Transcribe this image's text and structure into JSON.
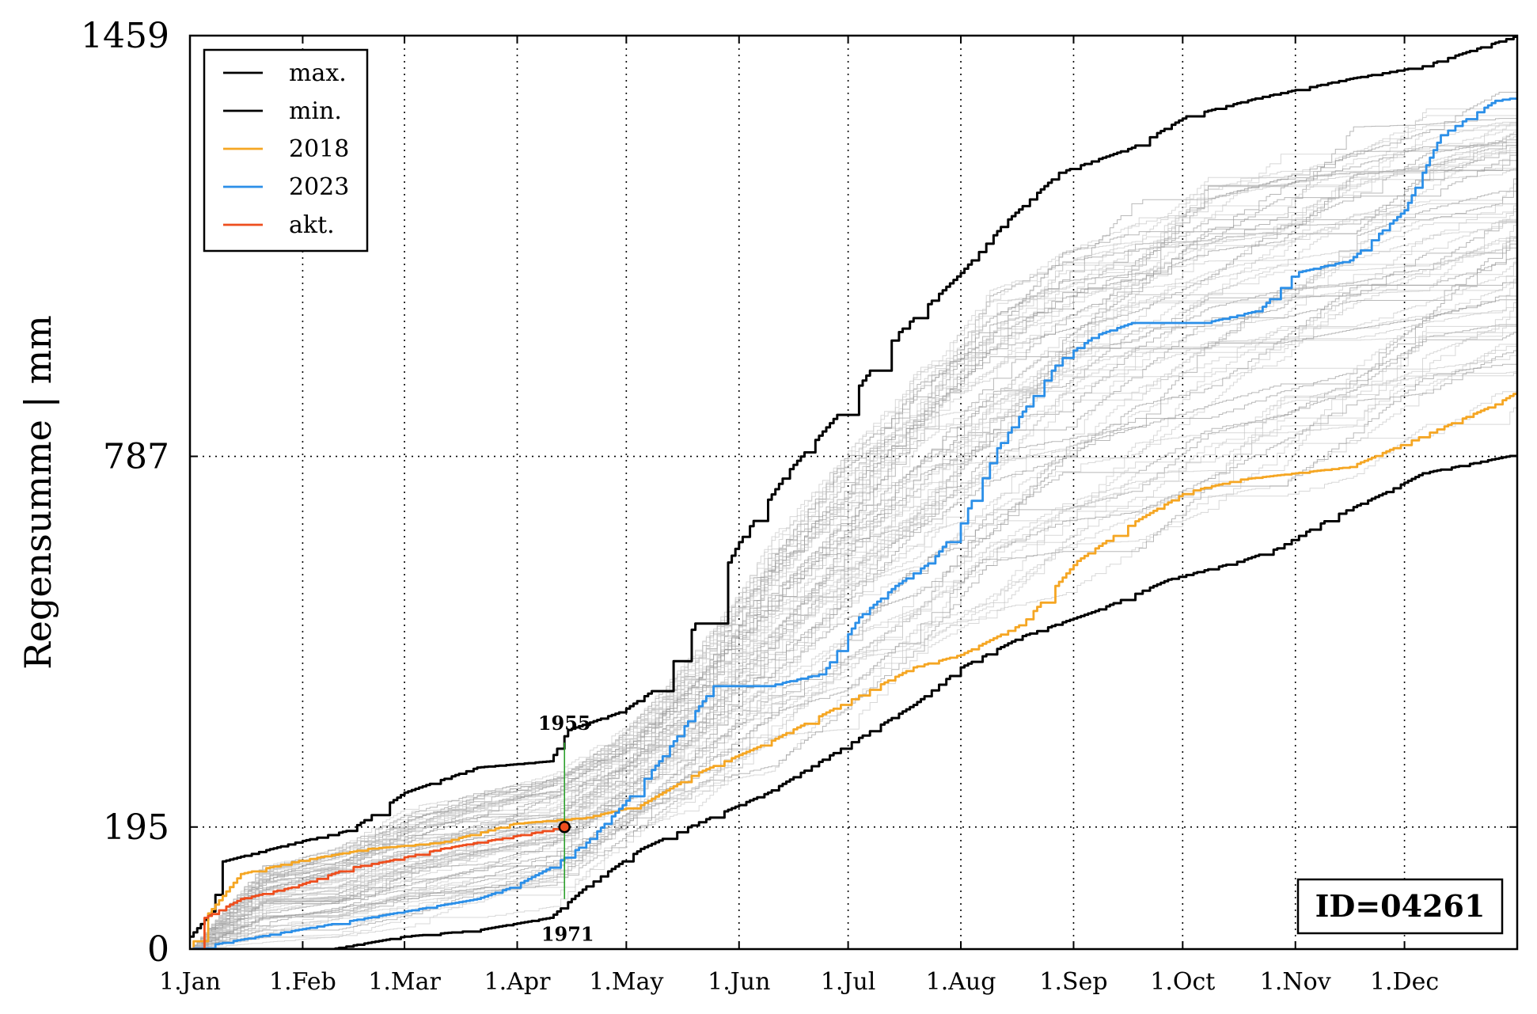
{
  "chart_data": {
    "type": "line",
    "ylabel": "Regensumme | mm",
    "ylim": [
      0,
      1459
    ],
    "yticks": [
      0,
      195,
      787,
      1459
    ],
    "xlim_days": [
      1,
      366
    ],
    "xticks": [
      {
        "day": 1,
        "label": "1.Jan"
      },
      {
        "day": 32,
        "label": "1.Feb"
      },
      {
        "day": 60,
        "label": "1.Mar"
      },
      {
        "day": 91,
        "label": "1.Apr"
      },
      {
        "day": 121,
        "label": "1.May"
      },
      {
        "day": 152,
        "label": "1.Jun"
      },
      {
        "day": 182,
        "label": "1.Jul"
      },
      {
        "day": 213,
        "label": "1.Aug"
      },
      {
        "day": 244,
        "label": "1.Sep"
      },
      {
        "day": 274,
        "label": "1.Oct"
      },
      {
        "day": 305,
        "label": "1.Nov"
      },
      {
        "day": 335,
        "label": "1.Dec"
      }
    ],
    "grid": true,
    "legend_position": "top-left",
    "id_label": "ID=04261",
    "series": [
      {
        "name": "max.",
        "color": "#000000",
        "points": [
          [
            1,
            20
          ],
          [
            7,
            60
          ],
          [
            10,
            140
          ],
          [
            30,
            170
          ],
          [
            45,
            190
          ],
          [
            60,
            250
          ],
          [
            80,
            290
          ],
          [
            100,
            300
          ],
          [
            105,
            350
          ],
          [
            120,
            380
          ],
          [
            130,
            420
          ],
          [
            140,
            520
          ],
          [
            152,
            650
          ],
          [
            165,
            760
          ],
          [
            180,
            860
          ],
          [
            195,
            980
          ],
          [
            213,
            1080
          ],
          [
            225,
            1160
          ],
          [
            240,
            1240
          ],
          [
            260,
            1280
          ],
          [
            275,
            1330
          ],
          [
            295,
            1360
          ],
          [
            320,
            1390
          ],
          [
            340,
            1410
          ],
          [
            366,
            1459
          ]
        ]
      },
      {
        "name": "min.",
        "color": "#000000",
        "points": [
          [
            1,
            0
          ],
          [
            40,
            0
          ],
          [
            60,
            20
          ],
          [
            80,
            30
          ],
          [
            100,
            50
          ],
          [
            110,
            100
          ],
          [
            125,
            160
          ],
          [
            140,
            200
          ],
          [
            160,
            250
          ],
          [
            180,
            320
          ],
          [
            200,
            390
          ],
          [
            213,
            450
          ],
          [
            230,
            500
          ],
          [
            250,
            540
          ],
          [
            270,
            590
          ],
          [
            290,
            620
          ],
          [
            300,
            640
          ],
          [
            315,
            690
          ],
          [
            330,
            730
          ],
          [
            340,
            760
          ],
          [
            366,
            790
          ]
        ]
      },
      {
        "name": "2018",
        "color": "#f5a623",
        "points": [
          [
            1,
            0
          ],
          [
            5,
            50
          ],
          [
            15,
            120
          ],
          [
            30,
            140
          ],
          [
            50,
            160
          ],
          [
            70,
            170
          ],
          [
            90,
            200
          ],
          [
            100,
            205
          ],
          [
            110,
            210
          ],
          [
            125,
            230
          ],
          [
            140,
            280
          ],
          [
            160,
            330
          ],
          [
            180,
            390
          ],
          [
            200,
            450
          ],
          [
            213,
            470
          ],
          [
            230,
            520
          ],
          [
            245,
            620
          ],
          [
            260,
            680
          ],
          [
            275,
            730
          ],
          [
            290,
            750
          ],
          [
            305,
            760
          ],
          [
            320,
            770
          ],
          [
            340,
            820
          ],
          [
            360,
            870
          ],
          [
            366,
            890
          ]
        ]
      },
      {
        "name": "2023",
        "color": "#2b8fe8",
        "points": [
          [
            1,
            0
          ],
          [
            10,
            10
          ],
          [
            40,
            40
          ],
          [
            60,
            60
          ],
          [
            80,
            80
          ],
          [
            90,
            100
          ],
          [
            100,
            130
          ],
          [
            110,
            170
          ],
          [
            120,
            230
          ],
          [
            130,
            300
          ],
          [
            145,
            420
          ],
          [
            160,
            420
          ],
          [
            175,
            440
          ],
          [
            185,
            530
          ],
          [
            195,
            580
          ],
          [
            205,
            620
          ],
          [
            213,
            680
          ],
          [
            223,
            800
          ],
          [
            235,
            900
          ],
          [
            240,
            940
          ],
          [
            250,
            980
          ],
          [
            260,
            1000
          ],
          [
            280,
            1000
          ],
          [
            295,
            1020
          ],
          [
            305,
            1080
          ],
          [
            320,
            1100
          ],
          [
            335,
            1180
          ],
          [
            345,
            1300
          ],
          [
            360,
            1355
          ],
          [
            366,
            1360
          ]
        ]
      },
      {
        "name": "akt.",
        "color": "#ee4e1e",
        "points": [
          [
            1,
            0
          ],
          [
            5,
            50
          ],
          [
            15,
            80
          ],
          [
            30,
            100
          ],
          [
            45,
            130
          ],
          [
            55,
            140
          ],
          [
            70,
            160
          ],
          [
            85,
            175
          ],
          [
            95,
            185
          ],
          [
            104,
            195
          ]
        ]
      }
    ],
    "marker": {
      "day": 104,
      "value": 195,
      "max_value": 330,
      "min_value": 80,
      "max_label": "1955",
      "min_label": "1971",
      "color": "#2ca02c"
    }
  },
  "legend": {
    "items": [
      {
        "label": "max.",
        "color": "#000000"
      },
      {
        "label": "min.",
        "color": "#000000"
      },
      {
        "label": "2018",
        "color": "#f5a623"
      },
      {
        "label": "2023",
        "color": "#2b8fe8"
      },
      {
        "label": "akt.",
        "color": "#ee4e1e"
      }
    ]
  }
}
